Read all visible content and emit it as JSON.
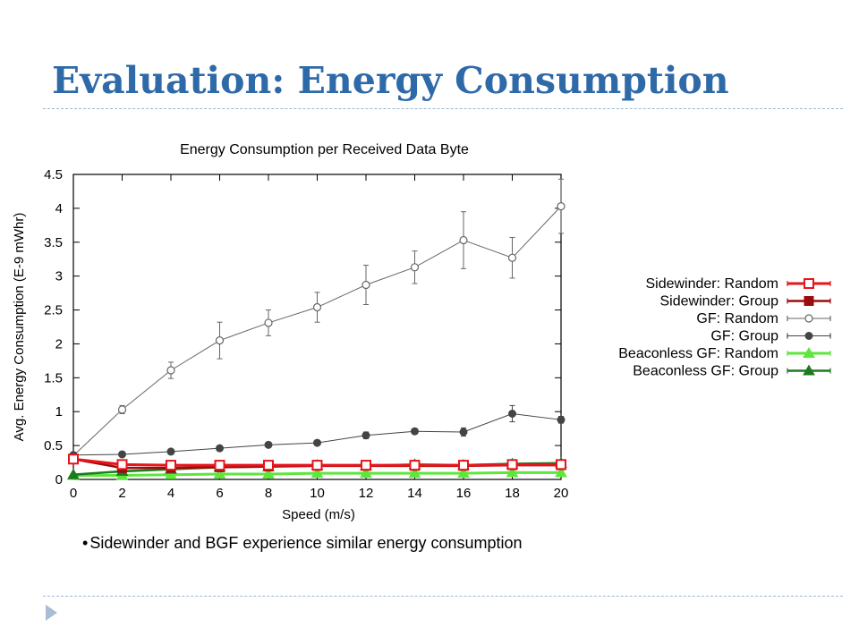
{
  "slide": {
    "title": "Evaluation: Energy Consumption",
    "bullet": "Sidewinder and BGF experience similar energy consumption",
    "bullet_marker": "•",
    "accent_color": "#2f6aa8",
    "nav_icon": "play-triangle-icon"
  },
  "chart_data": {
    "type": "line",
    "title": "Energy Consumption per Received Data Byte",
    "xlabel": "Speed (m/s)",
    "ylabel": "Avg. Energy Consumption (E-9 mWhr)",
    "xlim": [
      0,
      20
    ],
    "ylim": [
      0,
      4.5
    ],
    "xticks": [
      0,
      2,
      4,
      6,
      8,
      10,
      12,
      14,
      16,
      18,
      20
    ],
    "yticks": [
      0,
      0.5,
      1,
      1.5,
      2,
      2.5,
      3,
      3.5,
      4,
      4.5
    ],
    "grid": false,
    "legend_position": "right",
    "x": [
      0,
      2,
      4,
      6,
      8,
      10,
      12,
      14,
      16,
      18,
      20
    ],
    "series": [
      {
        "name": "Sidewinder: Random",
        "color": "#e8141c",
        "marker": "open-square",
        "values": [
          0.3,
          0.22,
          0.21,
          0.21,
          0.21,
          0.21,
          0.21,
          0.21,
          0.21,
          0.22,
          0.22
        ]
      },
      {
        "name": "Sidewinder: Group",
        "color": "#9b0d0d",
        "marker": "filled-square",
        "values": [
          0.3,
          0.17,
          0.17,
          0.18,
          0.19,
          0.2,
          0.2,
          0.2,
          0.2,
          0.21,
          0.21
        ]
      },
      {
        "name": "GF: Random",
        "color": "#666666",
        "marker": "open-circle",
        "values": [
          0.35,
          1.03,
          1.61,
          2.05,
          2.31,
          2.54,
          2.87,
          3.13,
          3.53,
          3.27,
          4.03
        ],
        "errors": [
          0.03,
          0.06,
          0.12,
          0.27,
          0.19,
          0.22,
          0.29,
          0.24,
          0.42,
          0.3,
          0.4
        ]
      },
      {
        "name": "GF: Group",
        "color": "#444444",
        "marker": "filled-circle",
        "values": [
          0.36,
          0.37,
          0.41,
          0.46,
          0.51,
          0.54,
          0.65,
          0.71,
          0.7,
          0.97,
          0.88
        ],
        "errors": [
          0.02,
          0.02,
          0.02,
          0.02,
          0.02,
          0.03,
          0.05,
          0.04,
          0.06,
          0.12,
          0.05
        ]
      },
      {
        "name": "Beaconless GF: Random",
        "color": "#5ee63c",
        "marker": "open-triangle",
        "values": [
          0.06,
          0.06,
          0.07,
          0.08,
          0.08,
          0.09,
          0.09,
          0.09,
          0.09,
          0.1,
          0.1
        ]
      },
      {
        "name": "Beaconless GF: Group",
        "color": "#1e7a1e",
        "marker": "filled-triangle",
        "values": [
          0.07,
          0.12,
          0.15,
          0.18,
          0.19,
          0.21,
          0.2,
          0.22,
          0.21,
          0.23,
          0.24
        ]
      }
    ]
  }
}
